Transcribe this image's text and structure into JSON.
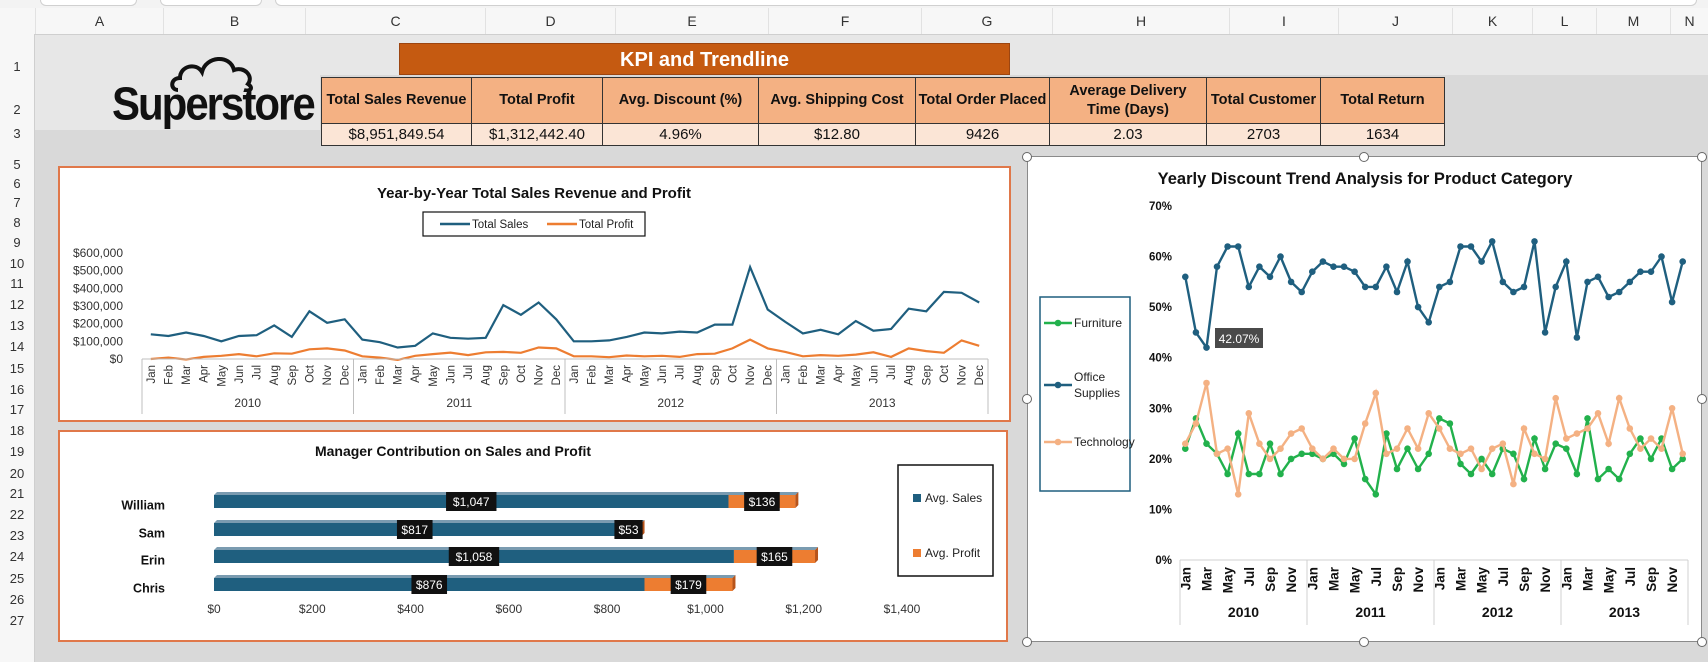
{
  "spreadsheet": {
    "columns": [
      "A",
      "B",
      "C",
      "D",
      "E",
      "F",
      "G",
      "H",
      "I",
      "J",
      "K",
      "L",
      "M",
      "N"
    ],
    "rows": [
      "1",
      "2",
      "3",
      "5",
      "6",
      "7",
      "8",
      "9",
      "10",
      "11",
      "12",
      "13",
      "14",
      "15",
      "16",
      "17",
      "18",
      "19",
      "20",
      "21",
      "22",
      "23",
      "24",
      "25",
      "26",
      "27"
    ]
  },
  "logo": {
    "text": "Superstore"
  },
  "kpi": {
    "title": "KPI and Trendline",
    "headers": [
      "Total  Sales Revenue",
      "Total Profit",
      "Avg. Discount (%)",
      "Avg. Shipping Cost",
      "Total Order Placed",
      "Average Delivery Time (Days)",
      "Total  Customer",
      "Total Return"
    ],
    "values": [
      "$8,951,849.54",
      "$1,312,442.40",
      "4.96%",
      "$12.80",
      "9426",
      "2.03",
      "2703",
      "1634"
    ]
  },
  "colors": {
    "orange": "#c55a11",
    "teal": "#1f5f7f",
    "profit": "#ed7d31",
    "furniture": "#22b14c",
    "technology": "#f4b183"
  },
  "chart_data": [
    {
      "type": "line",
      "title": "Year-by-Year Total Sales Revenue and Profit",
      "months": [
        "Jan",
        "Feb",
        "Mar",
        "Apr",
        "May",
        "Jun",
        "Jul",
        "Aug",
        "Sep",
        "Oct",
        "Nov",
        "Dec"
      ],
      "years": [
        "2010",
        "2011",
        "2012",
        "2013"
      ],
      "y_ticks": [
        "$600,000",
        "$500,000",
        "$400,000",
        "$300,000",
        "$200,000",
        "$100,000",
        "$0"
      ],
      "ylim": [
        0,
        600000
      ],
      "legend_position": "top",
      "series": [
        {
          "name": "Total Sales",
          "color": "#1f5f7f",
          "values": [
            140000,
            130000,
            150000,
            130000,
            100000,
            130000,
            135000,
            190000,
            125000,
            270000,
            205000,
            225000,
            110000,
            95000,
            65000,
            75000,
            145000,
            120000,
            115000,
            120000,
            305000,
            250000,
            320000,
            225000,
            100000,
            100000,
            105000,
            125000,
            150000,
            145000,
            155000,
            150000,
            195000,
            195000,
            520000,
            280000,
            210000,
            145000,
            165000,
            140000,
            215000,
            160000,
            170000,
            285000,
            270000,
            380000,
            375000,
            320000
          ]
        },
        {
          "name": "Total Profit",
          "color": "#ed7d31",
          "values": [
            0,
            8000,
            -3000,
            12000,
            18000,
            28000,
            15000,
            32000,
            30000,
            55000,
            60000,
            48000,
            15000,
            8000,
            -5000,
            18000,
            28000,
            36000,
            22000,
            38000,
            40000,
            35000,
            65000,
            60000,
            15000,
            15000,
            10000,
            20000,
            15000,
            18000,
            12000,
            28000,
            30000,
            60000,
            110000,
            60000,
            40000,
            15000,
            22000,
            18000,
            25000,
            38000,
            12000,
            60000,
            45000,
            35000,
            105000,
            75000
          ]
        }
      ]
    },
    {
      "type": "bar",
      "title": "Manager Contribution on Sales and Profit",
      "categories": [
        "William",
        "Sam",
        "Erin",
        "Chris"
      ],
      "x_ticks": [
        "$0",
        "$200",
        "$400",
        "$600",
        "$800",
        "$1,000",
        "$1,200",
        "$1,400"
      ],
      "xlim": [
        0,
        1400
      ],
      "legend_position": "right",
      "series": [
        {
          "name": "Avg. Sales",
          "color": "#1f5f7f",
          "values": [
            1047,
            817,
            1058,
            876
          ],
          "labels": [
            "$1,047",
            "$817",
            "$1,058",
            "$876"
          ]
        },
        {
          "name": "Avg. Profit",
          "color": "#ed7d31",
          "values": [
            136,
            53,
            165,
            179
          ],
          "labels": [
            "$136",
            "$53",
            "$165",
            "$179"
          ]
        }
      ]
    },
    {
      "type": "line",
      "title": "Yearly Discount Trend Analysis for Product Category",
      "months": [
        "Jan",
        "Mar",
        "May",
        "Jul",
        "Sep",
        "Nov"
      ],
      "years": [
        "2010",
        "2011",
        "2012",
        "2013"
      ],
      "y_ticks": [
        "70%",
        "60%",
        "50%",
        "40%",
        "30%",
        "20%",
        "10%",
        "0%"
      ],
      "ylim": [
        0,
        70
      ],
      "legend_position": "left",
      "annotation": {
        "text": "42.07%"
      },
      "series": [
        {
          "name": "Furniture",
          "color": "#22b14c",
          "values": [
            22,
            28,
            23,
            21,
            17,
            25,
            17,
            17,
            23,
            17,
            20,
            21,
            21,
            20,
            21,
            19,
            24,
            16,
            13,
            25,
            18,
            22,
            18,
            21,
            28,
            27,
            19,
            17,
            20,
            17,
            22,
            21,
            16,
            24,
            18,
            23,
            22,
            17,
            28,
            16,
            18,
            16,
            21,
            24,
            20,
            24,
            18,
            20
          ]
        },
        {
          "name": "Office Supplies",
          "color": "#1f5f7f",
          "values": [
            56,
            45,
            42,
            58,
            62,
            62,
            54,
            58,
            56,
            60,
            55,
            53,
            57,
            59,
            58,
            58,
            57,
            54,
            54,
            58,
            53,
            59,
            50,
            47,
            54,
            55,
            62,
            62,
            59,
            63,
            55,
            53,
            54,
            63,
            45,
            54,
            59,
            44,
            55,
            56,
            52,
            53,
            55,
            57,
            57,
            60,
            51,
            59
          ]
        },
        {
          "name": "Technology",
          "color": "#f4b183",
          "values": [
            23,
            27,
            35,
            21,
            22,
            13,
            29,
            23,
            20,
            22,
            25,
            26,
            22,
            20,
            22,
            20,
            20,
            27,
            33,
            21,
            22,
            26,
            22,
            29,
            26,
            22,
            21,
            22,
            18,
            22,
            23,
            15,
            26,
            21,
            20,
            32,
            24,
            25,
            26,
            29,
            23,
            32,
            26,
            22,
            24,
            22,
            30,
            21
          ]
        }
      ]
    }
  ]
}
